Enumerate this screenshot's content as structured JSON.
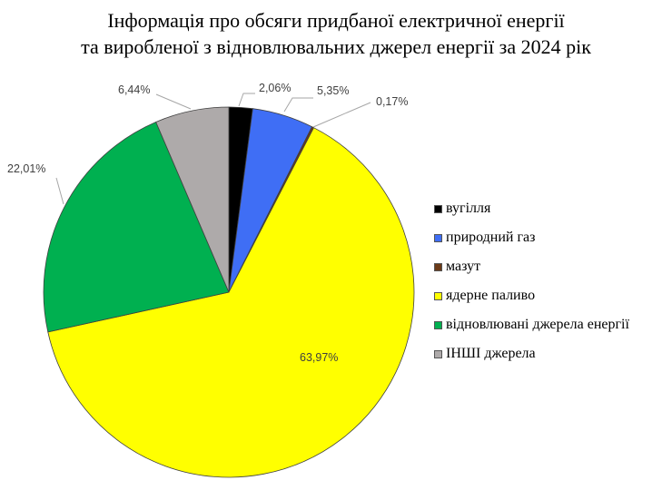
{
  "chart_data": {
    "type": "pie",
    "title_line1": "Інформація про обсяги придбаної електричної енергії",
    "title_line2": "та виробленої з відновлювальних джерел енергії за 2024 рік",
    "slices": [
      {
        "name": "вугілля",
        "value": 2.06,
        "label": "2,06%",
        "color": "#000000"
      },
      {
        "name": "природний газ",
        "value": 5.35,
        "label": "5,35%",
        "color": "#3f6ef5"
      },
      {
        "name": "мазут",
        "value": 0.17,
        "label": "0,17%",
        "color": "#6b3a17"
      },
      {
        "name": "ядерне паливо",
        "value": 63.97,
        "label": "63,97%",
        "color": "#ffff00"
      },
      {
        "name": "відновлювані джерела енергії",
        "value": 22.01,
        "label": "22,01%",
        "color": "#00b050"
      },
      {
        "name": "ІНШІ джерела",
        "value": 6.44,
        "label": "6,44%",
        "color": "#aeaaaa"
      }
    ],
    "start_angle": "12 o'clock",
    "direction": "clockwise",
    "legend_position": "right"
  }
}
